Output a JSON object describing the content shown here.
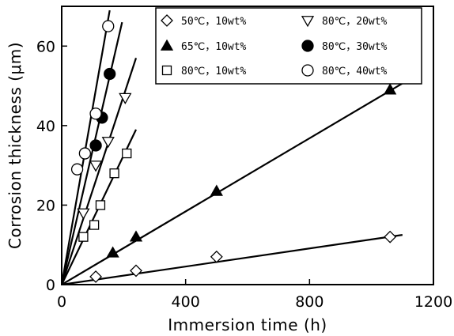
{
  "chart_data": {
    "type": "scatter",
    "xlabel": "Immersion time (h)",
    "ylabel": "Corrosion thickness (μm)",
    "xlim": [
      0,
      1200
    ],
    "ylim": [
      0,
      70
    ],
    "xticks": [
      0,
      400,
      800,
      1200
    ],
    "yticks": [
      0,
      20,
      40,
      60
    ],
    "xtick_labels": [
      "0",
      "400",
      "800",
      "1200"
    ],
    "ytick_labels": [
      "0",
      "20",
      "40",
      "60"
    ],
    "grid": false,
    "legend_position": "top-right",
    "series": [
      {
        "name": "50℃，10wt%",
        "marker": "diamond-open",
        "points": [
          [
            0,
            0
          ],
          [
            110,
            2
          ],
          [
            240,
            3.5
          ],
          [
            500,
            7
          ],
          [
            1060,
            12
          ]
        ],
        "fit": [
          [
            0,
            0
          ],
          [
            1100,
            12.5
          ]
        ]
      },
      {
        "name": "65℃，10wt%",
        "marker": "triangle-up-filled",
        "points": [
          [
            0,
            0
          ],
          [
            165,
            8
          ],
          [
            240,
            12
          ],
          [
            500,
            23.5
          ],
          [
            1060,
            49
          ]
        ],
        "fit": [
          [
            0,
            0
          ],
          [
            1130,
            52
          ]
        ]
      },
      {
        "name": "80℃，10wt%",
        "marker": "square-open",
        "points": [
          [
            0,
            0
          ],
          [
            70,
            12
          ],
          [
            105,
            15
          ],
          [
            125,
            20
          ],
          [
            170,
            28
          ],
          [
            210,
            33
          ]
        ],
        "fit": [
          [
            0,
            0
          ],
          [
            240,
            39
          ]
        ]
      },
      {
        "name": "80℃，20wt%",
        "marker": "triangle-down-open",
        "points": [
          [
            0,
            0
          ],
          [
            70,
            18
          ],
          [
            110,
            30
          ],
          [
            150,
            36
          ],
          [
            205,
            47
          ]
        ],
        "fit": [
          [
            0,
            0
          ],
          [
            240,
            57
          ]
        ]
      },
      {
        "name": "80℃，30wt%",
        "marker": "circle-filled",
        "points": [
          [
            0,
            0
          ],
          [
            110,
            35
          ],
          [
            130,
            42
          ],
          [
            155,
            53
          ]
        ],
        "fit": [
          [
            0,
            0
          ],
          [
            195,
            66
          ]
        ]
      },
      {
        "name": "80℃，40wt%",
        "marker": "circle-open",
        "points": [
          [
            0,
            0
          ],
          [
            50,
            29
          ],
          [
            75,
            33
          ],
          [
            110,
            43
          ],
          [
            150,
            65
          ]
        ],
        "fit": [
          [
            0,
            0
          ],
          [
            155,
            69
          ]
        ]
      }
    ]
  }
}
